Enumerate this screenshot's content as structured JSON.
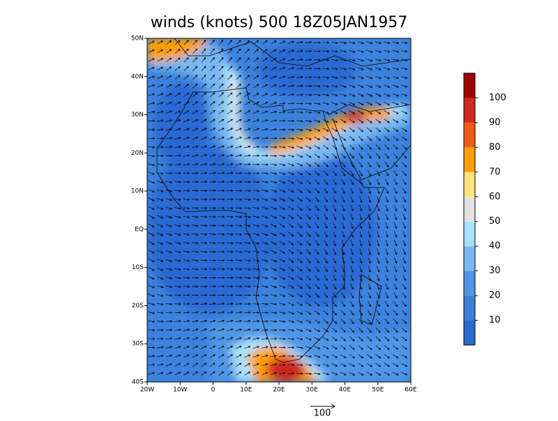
{
  "title": "winds (knots) 500 18Z05JAN1957",
  "map": {
    "lonlim": [
      -20,
      60
    ],
    "latlim": [
      -40,
      50
    ],
    "lon_ticks": [
      {
        "value": -20,
        "label": "20W"
      },
      {
        "value": -10,
        "label": "10W"
      },
      0,
      {
        "value": 10,
        "label": "10E"
      },
      {
        "value": 20,
        "label": "20E"
      },
      {
        "value": 30,
        "label": "30E"
      },
      {
        "value": 40,
        "label": "40E"
      },
      {
        "value": 50,
        "label": "50E"
      },
      {
        "value": 60,
        "label": "60E"
      }
    ],
    "lat_ticks": [
      {
        "value": 50,
        "label": "50N"
      },
      {
        "value": 40,
        "label": "40N"
      },
      {
        "value": 30,
        "label": "30N"
      },
      {
        "value": 20,
        "label": "20N"
      },
      {
        "value": 10,
        "label": "10N"
      },
      {
        "value": 0,
        "label": "EQ"
      },
      {
        "value": -10,
        "label": "10S"
      },
      {
        "value": -20,
        "label": "20S"
      },
      {
        "value": -30,
        "label": "30S"
      },
      {
        "value": -40,
        "label": "40S"
      }
    ]
  },
  "colorbar": {
    "clim": [
      0,
      110
    ],
    "ticks": [
      10,
      20,
      30,
      40,
      50,
      60,
      70,
      80,
      90,
      100
    ],
    "colors": [
      "#2a6ad4",
      "#3c82dc",
      "#5096e6",
      "#78b8f0",
      "#a8e2fa",
      "#e2e2e2",
      "#ffe27a",
      "#ffa000",
      "#f05a14",
      "#d2281e",
      "#a00000"
    ]
  },
  "reference_vector": {
    "label": "100"
  }
}
